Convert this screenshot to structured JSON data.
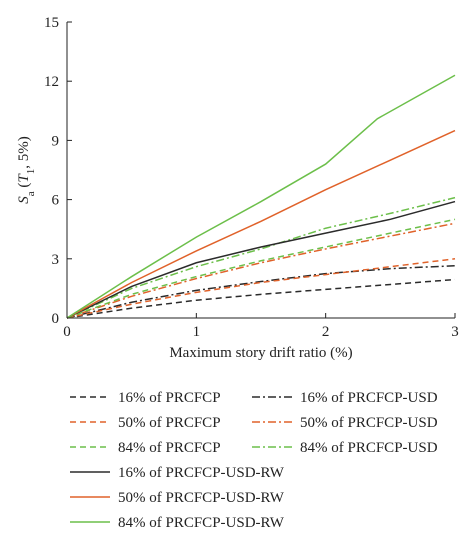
{
  "chart_data": {
    "type": "line",
    "xlabel": "Maximum story drift ratio (%)",
    "ylabel": {
      "main": "S",
      "sub": "a",
      "open": " (",
      "period": "T",
      "period_sub": "1",
      "rest": ", 5%)"
    },
    "xlim": [
      0,
      3
    ],
    "ylim": [
      0,
      15
    ],
    "xticks": [
      0,
      1,
      2,
      3
    ],
    "yticks": [
      0,
      3,
      6,
      9,
      12,
      15
    ],
    "grid": false,
    "legend_position": "bottom",
    "colors": {
      "black": "#2b2b2b",
      "orange": "#e0622a",
      "green": "#6cbf4a"
    },
    "series": [
      {
        "name": "16% of PRCFCP",
        "color": "#2b2b2b",
        "dash": "dashed",
        "x": [
          0,
          0.5,
          1,
          1.5,
          2,
          2.5,
          3
        ],
        "y": [
          0,
          0.5,
          0.9,
          1.2,
          1.45,
          1.7,
          1.95
        ]
      },
      {
        "name": "16% of PRCFCP-USD",
        "color": "#2b2b2b",
        "dash": "dashdot",
        "x": [
          0,
          0.5,
          1,
          1.5,
          2,
          2.5,
          3
        ],
        "y": [
          0,
          0.8,
          1.4,
          1.85,
          2.25,
          2.5,
          2.65
        ]
      },
      {
        "name": "50% of PRCFCP",
        "color": "#e0622a",
        "dash": "dashed",
        "x": [
          0,
          0.5,
          1,
          1.5,
          2,
          2.5,
          3
        ],
        "y": [
          0,
          0.7,
          1.3,
          1.8,
          2.2,
          2.6,
          3.0
        ]
      },
      {
        "name": "50% of PRCFCP-USD",
        "color": "#e0622a",
        "dash": "dashdot",
        "x": [
          0,
          0.5,
          1,
          1.5,
          2,
          2.5,
          3
        ],
        "y": [
          0,
          1.1,
          2.0,
          2.8,
          3.5,
          4.15,
          4.8
        ]
      },
      {
        "name": "84% of PRCFCP",
        "color": "#6cbf4a",
        "dash": "dashed",
        "x": [
          0,
          0.5,
          1,
          1.5,
          2,
          2.5,
          3
        ],
        "y": [
          0,
          1.2,
          2.1,
          2.9,
          3.6,
          4.3,
          5.0
        ]
      },
      {
        "name": "84% of PRCFCP-USD",
        "color": "#6cbf4a",
        "dash": "dashdot",
        "x": [
          0,
          0.5,
          1,
          1.5,
          2,
          2.5,
          3
        ],
        "y": [
          0,
          1.5,
          2.6,
          3.5,
          4.55,
          5.3,
          6.1
        ]
      },
      {
        "name": "16% of PRCFCP-USD-RW",
        "color": "#2b2b2b",
        "dash": "solid",
        "x": [
          0,
          0.5,
          1,
          1.5,
          2,
          2.5,
          3
        ],
        "y": [
          0,
          1.6,
          2.8,
          3.6,
          4.3,
          5.0,
          5.9
        ]
      },
      {
        "name": "50% of PRCFCP-USD-RW",
        "color": "#e0622a",
        "dash": "solid",
        "x": [
          0,
          0.5,
          1,
          1.5,
          2,
          2.5,
          3
        ],
        "y": [
          0,
          1.8,
          3.4,
          4.9,
          6.5,
          8.0,
          9.5
        ]
      },
      {
        "name": "84% of PRCFCP-USD-RW",
        "color": "#6cbf4a",
        "dash": "solid",
        "x": [
          0,
          0.5,
          1,
          1.5,
          2,
          2.4,
          3
        ],
        "y": [
          0,
          2.1,
          4.1,
          5.9,
          7.8,
          10.1,
          12.3
        ]
      }
    ]
  }
}
